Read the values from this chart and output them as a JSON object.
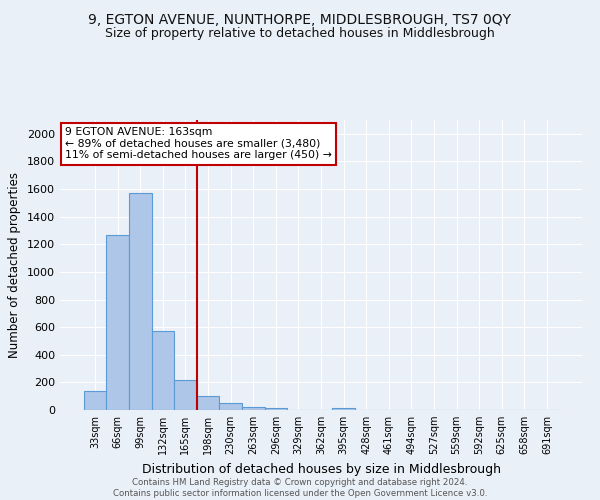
{
  "title": "9, EGTON AVENUE, NUNTHORPE, MIDDLESBROUGH, TS7 0QY",
  "subtitle": "Size of property relative to detached houses in Middlesbrough",
  "xlabel": "Distribution of detached houses by size in Middlesbrough",
  "ylabel": "Number of detached properties",
  "footer_line1": "Contains HM Land Registry data © Crown copyright and database right 2024.",
  "footer_line2": "Contains public sector information licensed under the Open Government Licence v3.0.",
  "bar_labels": [
    "33sqm",
    "66sqm",
    "99sqm",
    "132sqm",
    "165sqm",
    "198sqm",
    "230sqm",
    "263sqm",
    "296sqm",
    "329sqm",
    "362sqm",
    "395sqm",
    "428sqm",
    "461sqm",
    "494sqm",
    "527sqm",
    "559sqm",
    "592sqm",
    "625sqm",
    "658sqm",
    "691sqm"
  ],
  "bar_values": [
    140,
    1270,
    1570,
    570,
    220,
    100,
    50,
    25,
    15,
    0,
    0,
    15,
    0,
    0,
    0,
    0,
    0,
    0,
    0,
    0,
    0
  ],
  "bar_color": "#aec6e8",
  "bar_edge_color": "#5b9bd5",
  "property_line_x": 4.5,
  "property_line_color": "#c00000",
  "annotation_text_line1": "9 EGTON AVENUE: 163sqm",
  "annotation_text_line2": "← 89% of detached houses are smaller (3,480)",
  "annotation_text_line3": "11% of semi-detached houses are larger (450) →",
  "annotation_box_color": "#ffffff",
  "annotation_box_edge": "#c00000",
  "ylim": [
    0,
    2100
  ],
  "yticks": [
    0,
    200,
    400,
    600,
    800,
    1000,
    1200,
    1400,
    1600,
    1800,
    2000
  ],
  "bg_color": "#eaf0f8",
  "plot_bg_color": "#eaf0f8",
  "grid_color": "#ffffff",
  "title_fontsize": 10,
  "subtitle_fontsize": 9
}
